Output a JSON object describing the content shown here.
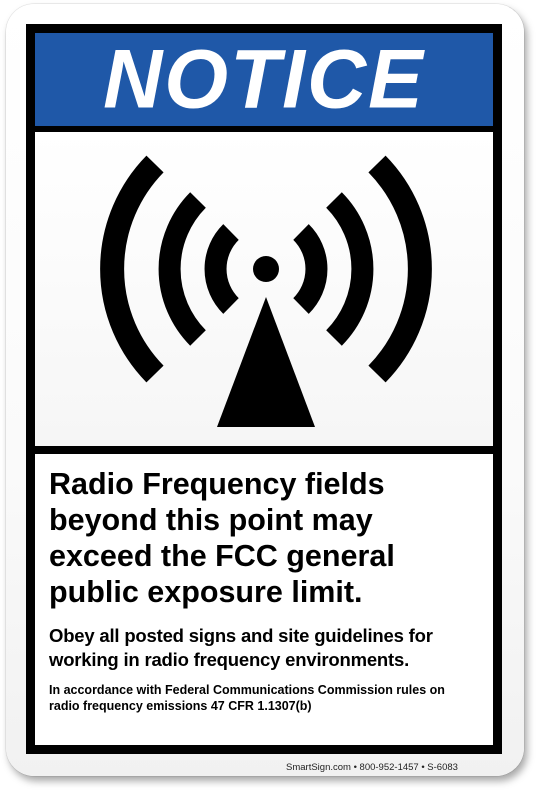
{
  "header": {
    "title": "NOTICE"
  },
  "symbol": {
    "icon": "radio-frequency-radiation-icon"
  },
  "message": {
    "main": "Radio Frequency fields\nbeyond this point may\nexceed the FCC general\npublic exposure limit.",
    "sub": "Obey all posted signs and site guidelines for\nworking in radio frequency environments.",
    "legal": "In accordance with Federal Communications Commission rules on\nradio frequency emissions 47 CFR 1.1307(b)"
  },
  "footer": {
    "text": "SmartSign.com • 800-952-1457 • S-6083"
  },
  "colors": {
    "header_blue": "#1f58a8",
    "border": "#000000",
    "text": "#000000"
  }
}
